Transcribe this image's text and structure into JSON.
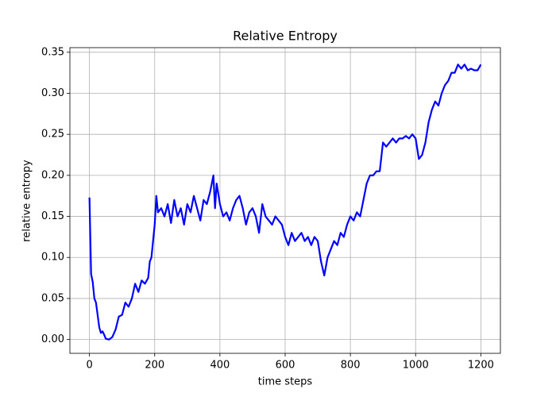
{
  "chart_data": {
    "type": "line",
    "title": "Relative Entropy",
    "x_label": "time steps",
    "y_label": "relative entropy",
    "x": [
      0,
      5,
      10,
      15,
      20,
      25,
      30,
      35,
      40,
      45,
      50,
      60,
      70,
      80,
      90,
      100,
      110,
      120,
      130,
      140,
      150,
      160,
      170,
      180,
      185,
      190,
      200,
      205,
      210,
      220,
      230,
      240,
      250,
      260,
      270,
      280,
      290,
      300,
      310,
      320,
      330,
      340,
      350,
      360,
      370,
      380,
      385,
      390,
      400,
      410,
      420,
      430,
      440,
      450,
      460,
      470,
      480,
      490,
      500,
      510,
      520,
      530,
      540,
      550,
      560,
      570,
      580,
      590,
      600,
      610,
      620,
      630,
      640,
      650,
      660,
      670,
      680,
      690,
      700,
      710,
      720,
      730,
      740,
      750,
      760,
      770,
      780,
      790,
      800,
      810,
      820,
      830,
      840,
      850,
      860,
      870,
      880,
      890,
      900,
      910,
      920,
      930,
      940,
      950,
      960,
      970,
      980,
      990,
      1000,
      1010,
      1020,
      1030,
      1040,
      1050,
      1060,
      1070,
      1080,
      1090,
      1100,
      1110,
      1120,
      1130,
      1140,
      1150,
      1160,
      1170,
      1180,
      1190,
      1200
    ],
    "series": [
      {
        "name": "relative entropy",
        "color": "#0000ff",
        "values": [
          0.173,
          0.08,
          0.07,
          0.05,
          0.045,
          0.03,
          0.015,
          0.008,
          0.01,
          0.006,
          0.001,
          0.0,
          0.003,
          0.012,
          0.028,
          0.03,
          0.045,
          0.04,
          0.05,
          0.068,
          0.058,
          0.072,
          0.068,
          0.075,
          0.095,
          0.1,
          0.14,
          0.175,
          0.155,
          0.16,
          0.15,
          0.165,
          0.142,
          0.17,
          0.15,
          0.16,
          0.14,
          0.165,
          0.155,
          0.175,
          0.16,
          0.145,
          0.17,
          0.165,
          0.18,
          0.2,
          0.16,
          0.19,
          0.165,
          0.15,
          0.155,
          0.145,
          0.16,
          0.17,
          0.175,
          0.16,
          0.14,
          0.155,
          0.16,
          0.15,
          0.13,
          0.165,
          0.15,
          0.145,
          0.14,
          0.15,
          0.145,
          0.14,
          0.125,
          0.115,
          0.13,
          0.12,
          0.125,
          0.13,
          0.12,
          0.125,
          0.115,
          0.125,
          0.12,
          0.095,
          0.078,
          0.1,
          0.11,
          0.12,
          0.115,
          0.13,
          0.125,
          0.14,
          0.15,
          0.145,
          0.155,
          0.15,
          0.17,
          0.19,
          0.2,
          0.2,
          0.205,
          0.205,
          0.24,
          0.235,
          0.24,
          0.245,
          0.24,
          0.245,
          0.245,
          0.248,
          0.245,
          0.25,
          0.245,
          0.22,
          0.225,
          0.24,
          0.265,
          0.28,
          0.29,
          0.285,
          0.3,
          0.31,
          0.315,
          0.325,
          0.325,
          0.335,
          0.33,
          0.335,
          0.328,
          0.33,
          0.328,
          0.328,
          0.335
        ]
      }
    ],
    "xlim": [
      -60,
      1260
    ],
    "ylim": [
      -0.0168,
      0.3556
    ],
    "xticks": [
      0,
      200,
      400,
      600,
      800,
      1000,
      1200
    ],
    "yticks": [
      {
        "value": 0,
        "label": "0.00"
      },
      {
        "value": 0.05,
        "label": "0.05"
      },
      {
        "value": 0.1,
        "label": "0.10"
      },
      {
        "value": 0.15,
        "label": "0.15"
      },
      {
        "value": 0.2,
        "label": "0.20"
      },
      {
        "value": 0.25,
        "label": "0.25"
      },
      {
        "value": 0.3,
        "label": "0.30"
      },
      {
        "value": 0.35,
        "label": "0.35"
      }
    ],
    "grid": true
  }
}
